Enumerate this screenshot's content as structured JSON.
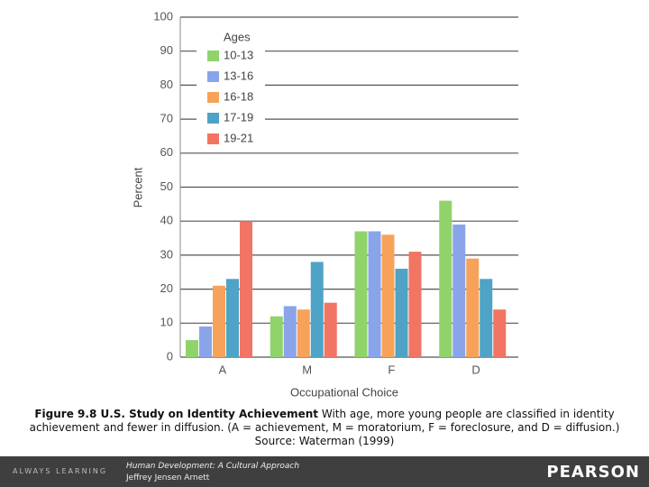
{
  "chart_data": {
    "type": "bar",
    "categories": [
      "A",
      "M",
      "F",
      "D"
    ],
    "series": [
      {
        "name": "10-13",
        "color": "#8fd36a",
        "values": [
          5,
          12,
          37,
          46
        ]
      },
      {
        "name": "13-16",
        "color": "#8aa4ea",
        "values": [
          9,
          15,
          37,
          39
        ]
      },
      {
        "name": "16-18",
        "color": "#f7a25a",
        "values": [
          21,
          14,
          36,
          29
        ]
      },
      {
        "name": "17-19",
        "color": "#4ea3c6",
        "values": [
          23,
          28,
          26,
          23
        ]
      },
      {
        "name": "19-21",
        "color": "#f27462",
        "values": [
          40,
          16,
          31,
          14
        ]
      }
    ],
    "legend_title": "Ages",
    "ylabel": "Percent",
    "xlabel": "Occupational Choice",
    "ylim": [
      0,
      100
    ],
    "yticks": [
      0,
      10,
      20,
      30,
      40,
      50,
      60,
      70,
      80,
      90,
      100
    ],
    "grid": true
  },
  "caption": {
    "label": "Figure 9.8   U.S. Study on Identity Achievement",
    "text": "  With age, more young people are classified in identity achievement and fewer in diffusion. (A = achievement, M = moratorium, F = foreclosure, and D = diffusion.) Source: Waterman (1999)"
  },
  "footer": {
    "tagline": "ALWAYS LEARNING",
    "book_title": "Human Development: A Cultural Approach",
    "author": "Jeffrey Jensen Arnett",
    "publisher": "PEARSON"
  }
}
